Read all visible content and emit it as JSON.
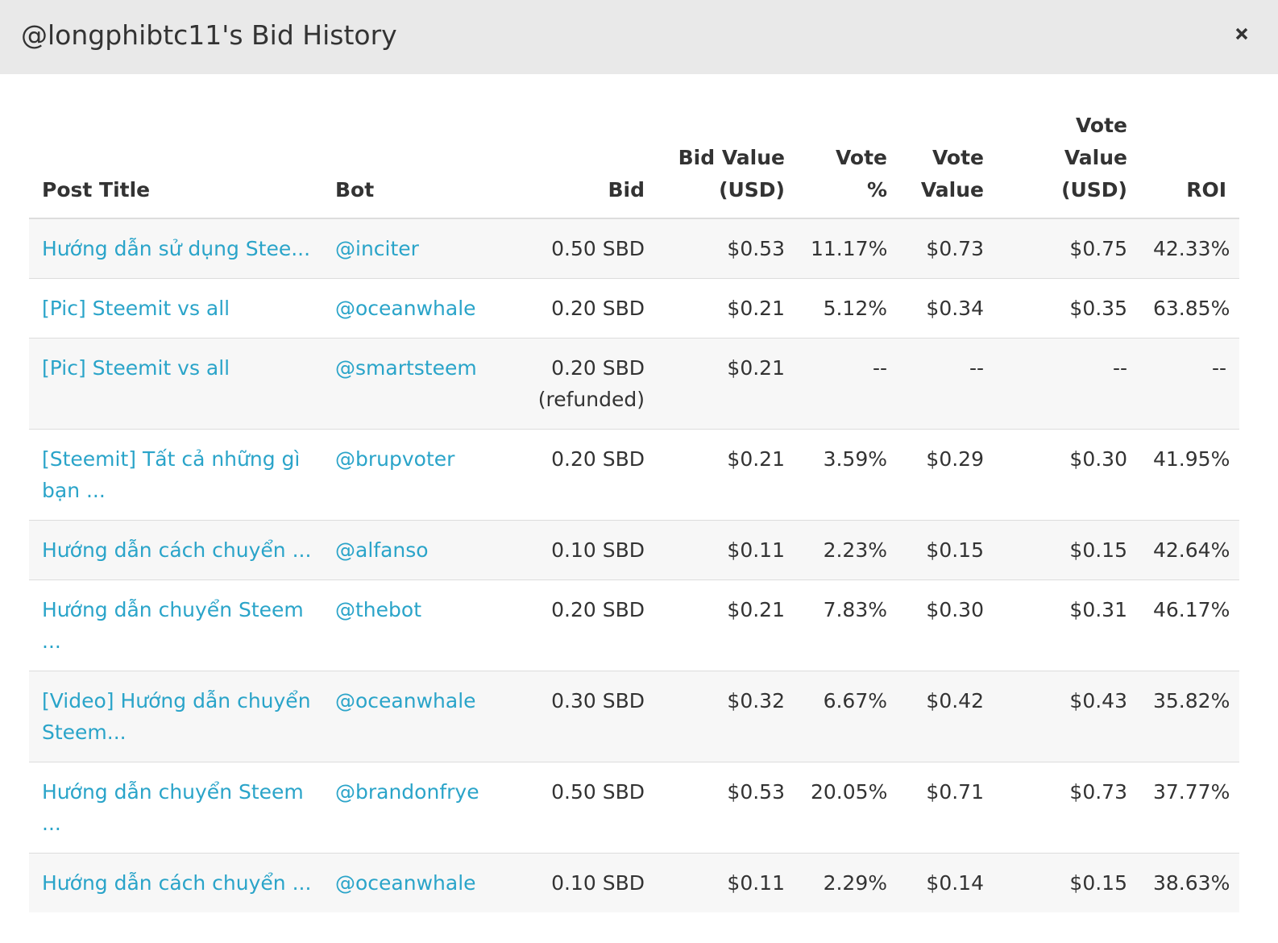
{
  "modal": {
    "title": "@longphibtc11's Bid History",
    "close_label": "×"
  },
  "table": {
    "headers": {
      "post_title": "Post Title",
      "bot": "Bot",
      "bid": "Bid",
      "bid_value_line1": "Bid Value",
      "bid_value_line2": "(USD)",
      "vote_pct": "Vote %",
      "vote_value_line1": "Vote",
      "vote_value_line2": "Value",
      "vote_value_usd_line1": "Vote Value",
      "vote_value_usd_line2": "(USD)",
      "roi": "ROI"
    },
    "rows": [
      {
        "title": "Hướng dẫn sử dụng Stee...",
        "bot": "@inciter",
        "bid": "0.50 SBD",
        "bid_note": "",
        "bid_value": "$0.53",
        "vote_pct": "11.17%",
        "vote_value": "$0.73",
        "vote_value_usd": "$0.75",
        "roi": "42.33%"
      },
      {
        "title": "[Pic] Steemit vs all",
        "bot": "@oceanwhale",
        "bid": "0.20 SBD",
        "bid_note": "",
        "bid_value": "$0.21",
        "vote_pct": "5.12%",
        "vote_value": "$0.34",
        "vote_value_usd": "$0.35",
        "roi": "63.85%"
      },
      {
        "title": "[Pic] Steemit vs all",
        "bot": "@smartsteem",
        "bid": "0.20 SBD",
        "bid_note": "(refunded)",
        "bid_value": "$0.21",
        "vote_pct": "--",
        "vote_value": "--",
        "vote_value_usd": "--",
        "roi": "--"
      },
      {
        "title": "[Steemit] Tất cả những gì bạn ...",
        "bot": "@brupvoter",
        "bid": "0.20 SBD",
        "bid_note": "",
        "bid_value": "$0.21",
        "vote_pct": "3.59%",
        "vote_value": "$0.29",
        "vote_value_usd": "$0.30",
        "roi": "41.95%"
      },
      {
        "title": "Hướng dẫn cách chuyển ...",
        "bot": "@alfanso",
        "bid": "0.10 SBD",
        "bid_note": "",
        "bid_value": "$0.11",
        "vote_pct": "2.23%",
        "vote_value": "$0.15",
        "vote_value_usd": "$0.15",
        "roi": "42.64%"
      },
      {
        "title": "Hướng dẫn chuyển Steem ...",
        "bot": "@thebot",
        "bid": "0.20 SBD",
        "bid_note": "",
        "bid_value": "$0.21",
        "vote_pct": "7.83%",
        "vote_value": "$0.30",
        "vote_value_usd": "$0.31",
        "roi": "46.17%"
      },
      {
        "title": "[Video] Hướng dẫn chuyển Steem...",
        "bot": "@oceanwhale",
        "bid": "0.30 SBD",
        "bid_note": "",
        "bid_value": "$0.32",
        "vote_pct": "6.67%",
        "vote_value": "$0.42",
        "vote_value_usd": "$0.43",
        "roi": "35.82%"
      },
      {
        "title": "Hướng dẫn chuyển Steem ...",
        "bot": "@brandonfrye",
        "bid": "0.50 SBD",
        "bid_note": "",
        "bid_value": "$0.53",
        "vote_pct": "20.05%",
        "vote_value": "$0.71",
        "vote_value_usd": "$0.73",
        "roi": "37.77%"
      },
      {
        "title": "Hướng dẫn cách chuyển ...",
        "bot": "@oceanwhale",
        "bid": "0.10 SBD",
        "bid_note": "",
        "bid_value": "$0.11",
        "vote_pct": "2.29%",
        "vote_value": "$0.14",
        "vote_value_usd": "$0.15",
        "roi": "38.63%"
      }
    ]
  },
  "colors": {
    "link": "#2aa4c9",
    "header_bg": "#e9e9e9",
    "stripe": "#f7f7f7"
  },
  "icons": {
    "close": "close-icon"
  }
}
